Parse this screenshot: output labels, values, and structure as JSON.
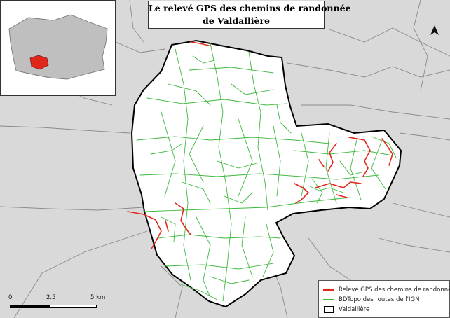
{
  "title": {
    "line1": "Le relevé GPS des chemins de randonnée",
    "line2": "de Valdallière"
  },
  "legend": {
    "items": [
      {
        "label": "Relevé GPS des chemins de randonnés",
        "symbol": "line",
        "color": "#e0271c"
      },
      {
        "label": "BDTopo des routes de l'IGN",
        "symbol": "line",
        "color": "#3cb83c"
      },
      {
        "label": "Valdallière",
        "symbol": "polygon",
        "color": "#000000"
      }
    ]
  },
  "scalebar": {
    "ticks": [
      "0",
      "2.5",
      "5 km"
    ]
  },
  "colors": {
    "background": "#d9d9d9",
    "commune_fill": "#ffffff",
    "boundary": "#000000",
    "roads": "#3cb83c",
    "gps_tracks": "#e0271c",
    "neighbor_borders": "#8a8a8a",
    "inset_region": "#aaaaaa",
    "inset_highlight": "#e0271c"
  },
  "north_arrow_icon": "north-arrow-icon"
}
